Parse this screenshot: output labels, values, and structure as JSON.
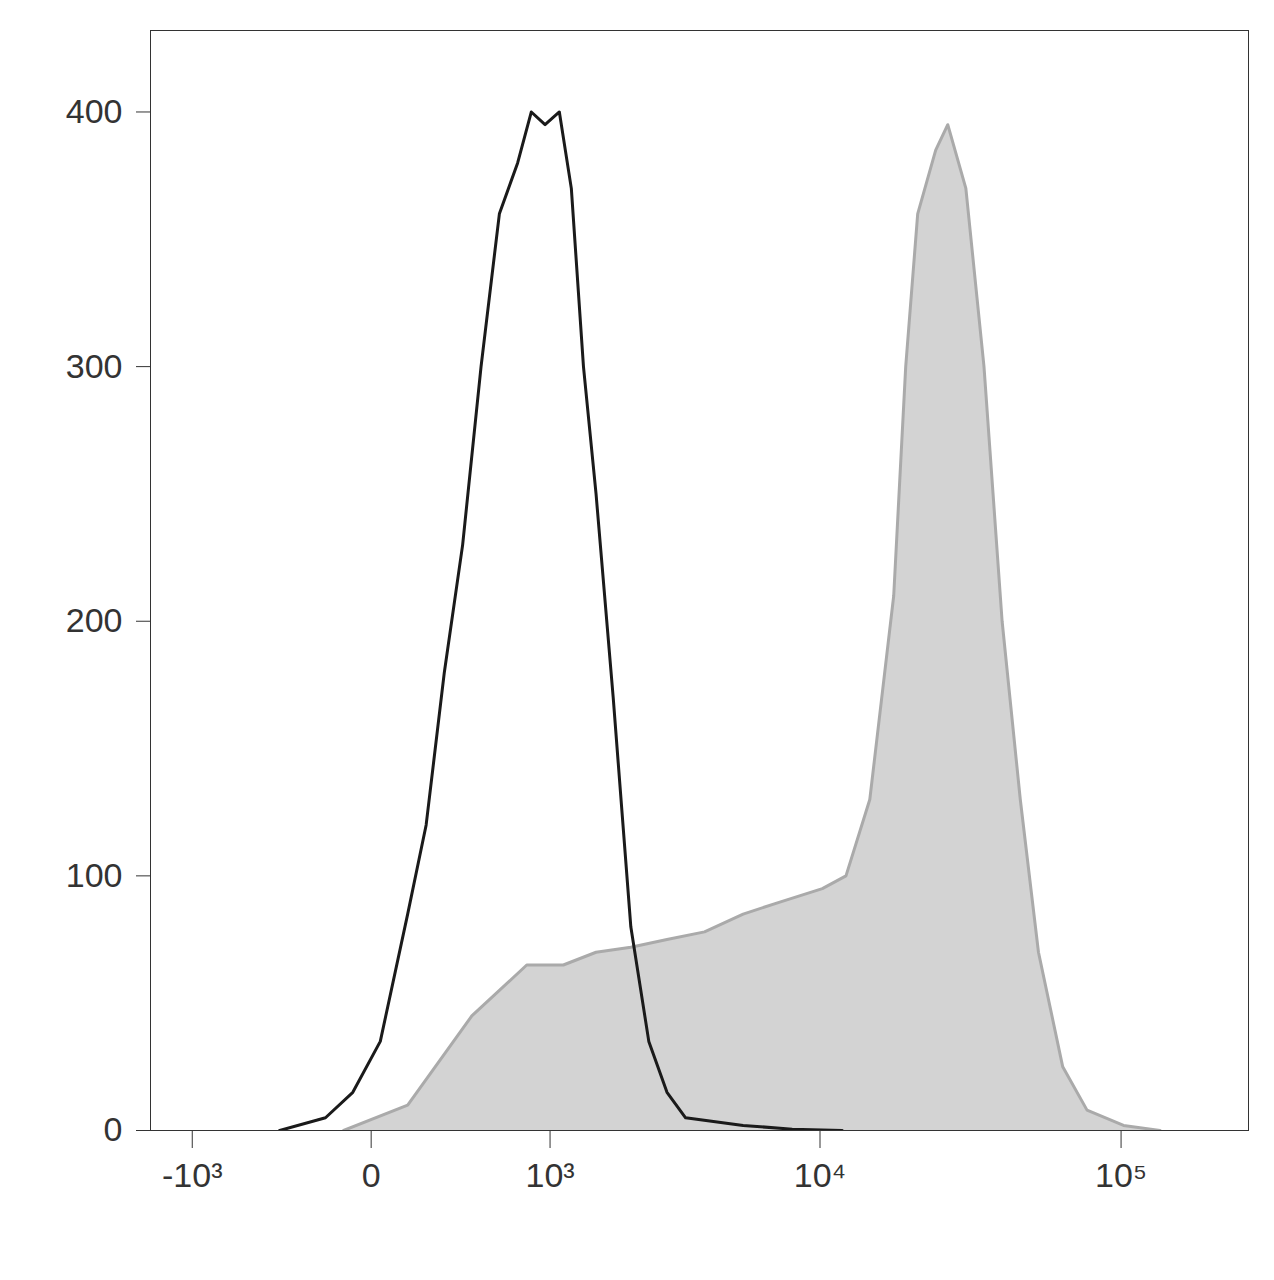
{
  "chart_data": {
    "type": "histogram",
    "log": "x",
    "xlim": [
      -1500,
      262144
    ],
    "xticks": [
      {
        "value": -1000,
        "label": "-10³"
      },
      0,
      {
        "value": 1000,
        "label": "10³"
      },
      {
        "value": 10000,
        "label": "10⁴"
      },
      {
        "value": 100000,
        "label": "10⁵"
      }
    ],
    "ylim": [
      0,
      432
    ],
    "yticks": [
      0,
      100,
      200,
      300,
      400
    ],
    "grid": false,
    "series": [
      {
        "type": "area",
        "color": "#d3d3d3",
        "x": [
          -81,
          111,
          258,
          398,
          571,
          782,
          1142,
          1560,
          2133,
          2912,
          3980,
          5445,
          7430,
          10185,
          12240,
          14720,
          17700,
          19410,
          21280,
          24430,
          26790,
          30760,
          35320,
          40550,
          46560,
          53460,
          64270,
          77270,
          101900,
          134300
        ],
        "values": [
          0,
          10,
          30,
          45,
          55,
          65,
          65,
          70,
          72,
          75,
          78,
          85,
          90,
          95,
          100,
          130,
          210,
          300,
          360,
          385,
          395,
          370,
          300,
          200,
          130,
          70,
          25,
          8,
          2,
          0
        ]
      },
      {
        "type": "line",
        "color": "#1a1a1a",
        "x": [
          -348,
          -144,
          -52,
          25,
          111,
          180,
          258,
          348,
          452,
          571,
          707,
          822,
          950,
          1098,
          1235,
          1387,
          1560,
          1824,
          2133,
          2494,
          2912,
          3404,
          5445,
          8038,
          11880
        ],
        "values": [
          0,
          5,
          15,
          35,
          85,
          120,
          180,
          230,
          300,
          360,
          380,
          400,
          395,
          400,
          370,
          300,
          250,
          170,
          80,
          35,
          15,
          5,
          2,
          0.5,
          0
        ]
      }
    ]
  }
}
